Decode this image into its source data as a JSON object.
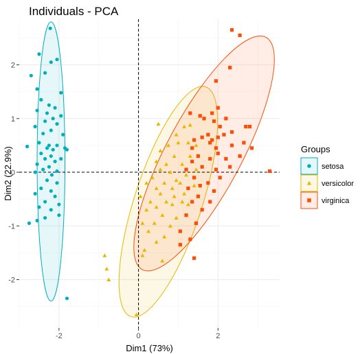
{
  "chart_data": {
    "type": "scatter",
    "title": "Individuals - PCA",
    "xlabel": "Dim1 (73%)",
    "ylabel": "Dim2 (22.9%)",
    "xlim": [
      -3.0,
      3.55
    ],
    "ylim": [
      -2.9,
      2.85
    ],
    "x_ticks": [
      -2,
      0,
      2
    ],
    "y_ticks": [
      -2,
      -1,
      0,
      1,
      2
    ],
    "x_tick_labels": [
      "-2",
      "0",
      "2"
    ],
    "y_tick_labels": [
      "-2",
      "-1",
      "0",
      "1",
      "2"
    ],
    "grid": true,
    "reference_lines": {
      "x": 0,
      "y": 0,
      "style": "dashed"
    },
    "legend": {
      "title": "Groups",
      "position": "right"
    },
    "series": [
      {
        "name": "setosa",
        "color": "#00AFBB",
        "shape": "circle",
        "ellipse": {
          "cx": -2.2,
          "cy": 0.2,
          "rx": 0.35,
          "ry": 2.6,
          "angle": 0
        },
        "points": [
          [
            -2.22,
            2.68
          ],
          [
            -2.5,
            2.2
          ],
          [
            -2.05,
            2.1
          ],
          [
            -2.2,
            2.05
          ],
          [
            -2.35,
            1.85
          ],
          [
            -2.7,
            1.8
          ],
          [
            -2.55,
            1.55
          ],
          [
            -1.95,
            1.48
          ],
          [
            -2.45,
            1.35
          ],
          [
            -2.25,
            1.25
          ],
          [
            -2.1,
            1.2
          ],
          [
            -2.55,
            1.15
          ],
          [
            -2.3,
            1.1
          ],
          [
            -1.95,
            1.05
          ],
          [
            -2.15,
            1.0
          ],
          [
            -2.35,
            0.95
          ],
          [
            -2.05,
            0.9
          ],
          [
            -2.6,
            0.85
          ],
          [
            -2.2,
            0.78
          ],
          [
            -2.4,
            0.72
          ],
          [
            -1.9,
            0.7
          ],
          [
            -2.5,
            0.55
          ],
          [
            -2.25,
            0.5
          ],
          [
            -2.05,
            0.5
          ],
          [
            -2.3,
            0.45
          ],
          [
            -2.15,
            0.42
          ],
          [
            -2.8,
            0.48
          ],
          [
            -1.85,
            0.45
          ],
          [
            -1.8,
            0.42
          ],
          [
            -2.45,
            0.35
          ],
          [
            -2.2,
            0.3
          ],
          [
            -2.35,
            0.25
          ],
          [
            -1.95,
            0.25
          ],
          [
            -2.1,
            0.2
          ],
          [
            -2.55,
            0.15
          ],
          [
            -2.25,
            0.1
          ],
          [
            -2.4,
            0.05
          ],
          [
            -2.05,
            0.02
          ],
          [
            -2.6,
            0.0
          ],
          [
            -2.18,
            -0.05
          ],
          [
            -2.3,
            -0.15
          ],
          [
            -2.05,
            -0.2
          ],
          [
            -2.45,
            -0.3
          ],
          [
            -2.2,
            -0.35
          ],
          [
            -2.6,
            -0.4
          ],
          [
            -2.1,
            -0.45
          ],
          [
            -2.35,
            -0.55
          ],
          [
            -2.0,
            -0.6
          ],
          [
            -2.5,
            -0.65
          ],
          [
            -2.2,
            -0.7
          ],
          [
            -2.75,
            -0.95
          ],
          [
            -2.55,
            -0.9
          ],
          [
            -2.0,
            -0.8
          ],
          [
            -2.35,
            -0.85
          ],
          [
            -1.8,
            -2.35
          ]
        ]
      },
      {
        "name": "versicolor",
        "color": "#E7B800",
        "shape": "triangle",
        "ellipse": {
          "cx": 0.75,
          "cy": -0.55,
          "rx": 0.85,
          "ry": 2.25,
          "angle": 18
        },
        "points": [
          [
            0.5,
            0.9
          ],
          [
            1.15,
            0.85
          ],
          [
            1.3,
            0.88
          ],
          [
            0.95,
            0.7
          ],
          [
            1.0,
            0.55
          ],
          [
            1.25,
            0.55
          ],
          [
            0.75,
            0.5
          ],
          [
            1.45,
            0.5
          ],
          [
            0.55,
            0.4
          ],
          [
            0.9,
            0.3
          ],
          [
            1.3,
            0.3
          ],
          [
            0.45,
            0.2
          ],
          [
            0.7,
            0.15
          ],
          [
            1.1,
            0.15
          ],
          [
            1.45,
            0.05
          ],
          [
            0.55,
            0.05
          ],
          [
            0.8,
            0.0
          ],
          [
            1.2,
            -0.05
          ],
          [
            0.35,
            -0.1
          ],
          [
            0.95,
            -0.15
          ],
          [
            0.65,
            -0.2
          ],
          [
            0.2,
            -0.2
          ],
          [
            1.05,
            -0.2
          ],
          [
            1.4,
            -0.25
          ],
          [
            0.45,
            -0.3
          ],
          [
            0.85,
            -0.3
          ],
          [
            0.55,
            -0.4
          ],
          [
            1.15,
            -0.4
          ],
          [
            0.05,
            -0.45
          ],
          [
            0.9,
            -0.45
          ],
          [
            0.3,
            -0.55
          ],
          [
            0.7,
            -0.55
          ],
          [
            1.1,
            -0.55
          ],
          [
            0.45,
            -0.65
          ],
          [
            0.85,
            -0.6
          ],
          [
            1.25,
            -0.6
          ],
          [
            0.2,
            -0.7
          ],
          [
            0.6,
            -0.8
          ],
          [
            0.95,
            -0.85
          ],
          [
            0.1,
            -0.95
          ],
          [
            0.4,
            -0.95
          ],
          [
            0.8,
            -1.0
          ],
          [
            0.25,
            -1.1
          ],
          [
            0.65,
            -1.2
          ],
          [
            0.45,
            -1.3
          ],
          [
            0.15,
            -1.45
          ],
          [
            1.05,
            -1.35
          ],
          [
            0.1,
            -1.55
          ],
          [
            -0.85,
            -1.55
          ],
          [
            0.6,
            -1.65
          ],
          [
            -0.8,
            -1.8
          ],
          [
            -0.75,
            -2.0
          ],
          [
            -0.05,
            -2.65
          ]
        ]
      },
      {
        "name": "virginica",
        "color": "#FC4E07",
        "shape": "square",
        "ellipse": {
          "cx": 1.65,
          "cy": 0.35,
          "rx": 0.95,
          "ry": 2.45,
          "angle": 28
        },
        "points": [
          [
            2.35,
            2.65
          ],
          [
            2.55,
            2.55
          ],
          [
            2.3,
            1.95
          ],
          [
            1.95,
            1.7
          ],
          [
            1.3,
            1.1
          ],
          [
            1.55,
            1.05
          ],
          [
            1.85,
            1.1
          ],
          [
            2.0,
            1.2
          ],
          [
            1.65,
            1.0
          ],
          [
            2.2,
            1.0
          ],
          [
            1.9,
            0.95
          ],
          [
            2.05,
            0.85
          ],
          [
            2.7,
            0.85
          ],
          [
            2.8,
            0.85
          ],
          [
            2.35,
            0.75
          ],
          [
            1.75,
            0.7
          ],
          [
            2.0,
            0.65
          ],
          [
            2.15,
            0.7
          ],
          [
            1.4,
            0.6
          ],
          [
            1.6,
            0.65
          ],
          [
            1.85,
            0.6
          ],
          [
            1.8,
            0.55
          ],
          [
            2.65,
            0.55
          ],
          [
            2.35,
            0.5
          ],
          [
            1.35,
            0.45
          ],
          [
            1.95,
            0.45
          ],
          [
            2.85,
            0.45
          ],
          [
            2.0,
            0.35
          ],
          [
            1.5,
            0.3
          ],
          [
            2.55,
            0.3
          ],
          [
            1.35,
            0.2
          ],
          [
            1.8,
            0.25
          ],
          [
            2.2,
            0.25
          ],
          [
            1.6,
            0.1
          ],
          [
            2.3,
            0.1
          ],
          [
            1.2,
            0.05
          ],
          [
            1.95,
            0.05
          ],
          [
            3.3,
            0.02
          ],
          [
            1.4,
            -0.1
          ],
          [
            2.05,
            -0.1
          ],
          [
            1.75,
            -0.2
          ],
          [
            1.55,
            -0.25
          ],
          [
            1.25,
            -0.3
          ],
          [
            1.9,
            -0.35
          ],
          [
            1.5,
            -0.45
          ],
          [
            1.35,
            -0.55
          ],
          [
            1.8,
            -0.55
          ],
          [
            1.6,
            -0.7
          ],
          [
            1.2,
            -0.8
          ],
          [
            1.45,
            -0.95
          ],
          [
            1.05,
            -1.1
          ],
          [
            1.3,
            -1.25
          ],
          [
            1.05,
            -1.35
          ],
          [
            1.4,
            -1.6
          ]
        ]
      }
    ]
  }
}
